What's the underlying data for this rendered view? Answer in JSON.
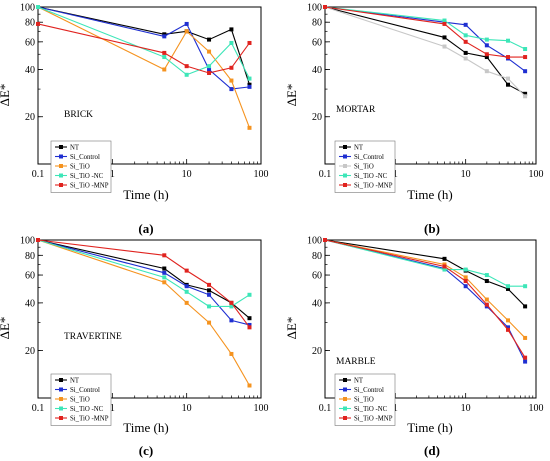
{
  "colors": {
    "NT": "#000000",
    "Si_Control": "#1f2fd1",
    "Si_TiO2": "#f5931f",
    "Si_TiO2_NC": "#3de6b8",
    "Si_TiO2_MNP": "#e0231f",
    "Si_TiO2_light": "#c7c7c7"
  },
  "chart_data": [
    {
      "type": "line",
      "panel_label": "(a)",
      "sample_label": "BRICK",
      "xlabel": "Time (h)",
      "ylabel": "ΔE*",
      "xscale": "log",
      "yscale": "log",
      "xlim": [
        0.1,
        100
      ],
      "ylim": [
        10,
        100
      ],
      "xticks": [
        "0.1",
        "1",
        "10",
        "100"
      ],
      "yticks": [
        "20",
        "40",
        "60",
        "80",
        "100"
      ],
      "legend": [
        "NT",
        "Si_Control",
        "Si_TiO",
        "Si_TiO -NC",
        "Si_TiO -MNP"
      ],
      "series": [
        {
          "name": "NT",
          "color_key": "NT",
          "x": [
            0.1,
            5,
            10,
            20,
            40,
            70
          ],
          "y": [
            100,
            67,
            70,
            62,
            72,
            32
          ]
        },
        {
          "name": "Si_Control",
          "color_key": "Si_Control",
          "x": [
            0.1,
            5,
            10,
            20,
            40,
            70
          ],
          "y": [
            100,
            65,
            78,
            40,
            30,
            31
          ]
        },
        {
          "name": "Si_TiO",
          "color_key": "Si_TiO2",
          "x": [
            0.1,
            5,
            10,
            20,
            40,
            70
          ],
          "y": [
            100,
            40,
            70,
            52,
            34,
            17
          ]
        },
        {
          "name": "Si_TiO -NC",
          "color_key": "Si_TiO2_NC",
          "x": [
            0.1,
            5,
            10,
            20,
            40,
            70
          ],
          "y": [
            100,
            48,
            37,
            42,
            59,
            35
          ]
        },
        {
          "name": "Si_TiO -MNP",
          "color_key": "Si_TiO2_MNP",
          "x": [
            0.1,
            5,
            10,
            20,
            40,
            70
          ],
          "y": [
            78,
            51,
            42,
            38,
            41,
            59
          ]
        }
      ]
    },
    {
      "type": "line",
      "panel_label": "(b)",
      "sample_label": "MORTAR",
      "xlabel": "Time (h)",
      "ylabel": "ΔE*",
      "xscale": "log",
      "yscale": "log",
      "xlim": [
        0.1,
        100
      ],
      "ylim": [
        10,
        100
      ],
      "xticks": [
        "0.1",
        "1",
        "10",
        "100"
      ],
      "yticks": [
        "20",
        "40",
        "60",
        "80",
        "100"
      ],
      "legend": [
        "NT",
        "Si_Control",
        "Si_TiO",
        "Si_TiO -NC",
        "Si_TiO -MNP"
      ],
      "series": [
        {
          "name": "NT",
          "color_key": "NT",
          "x": [
            0.1,
            5,
            10,
            20,
            40,
            70
          ],
          "y": [
            100,
            64,
            51,
            48,
            32,
            28
          ]
        },
        {
          "name": "Si_Control",
          "color_key": "Si_Control",
          "x": [
            0.1,
            5,
            10,
            20,
            40,
            70
          ],
          "y": [
            100,
            80,
            77,
            57,
            47,
            39
          ]
        },
        {
          "name": "Si_TiO",
          "color_key": "Si_TiO2_light",
          "x": [
            0.1,
            5,
            10,
            20,
            40,
            70
          ],
          "y": [
            100,
            56,
            47,
            39,
            35,
            27
          ]
        },
        {
          "name": "Si_TiO -NC",
          "color_key": "Si_TiO2_NC",
          "x": [
            0.1,
            5,
            10,
            20,
            40,
            70
          ],
          "y": [
            100,
            82,
            66,
            62,
            61,
            54
          ]
        },
        {
          "name": "Si_TiO -MNP",
          "color_key": "Si_TiO2_MNP",
          "x": [
            0.1,
            5,
            10,
            20,
            40,
            70
          ],
          "y": [
            100,
            78,
            60,
            50,
            48,
            48
          ]
        }
      ]
    },
    {
      "type": "line",
      "panel_label": "(c)",
      "sample_label": "TRAVERTINE",
      "xlabel": "Time (h)",
      "ylabel": "ΔE*",
      "xscale": "log",
      "yscale": "log",
      "xlim": [
        0.1,
        100
      ],
      "ylim": [
        10,
        100
      ],
      "xticks": [
        "0.1",
        "1",
        "10",
        "100"
      ],
      "yticks": [
        "20",
        "40",
        "60",
        "80",
        "100"
      ],
      "legend": [
        "NT",
        "Si_Control",
        "Si_TiO",
        "Si_TiO -NC",
        "Si_TiO -MNP"
      ],
      "series": [
        {
          "name": "NT",
          "color_key": "NT",
          "x": [
            0.1,
            5,
            10,
            20,
            40,
            70
          ],
          "y": [
            100,
            66,
            52,
            48,
            40,
            32
          ]
        },
        {
          "name": "Si_Control",
          "color_key": "Si_Control",
          "x": [
            0.1,
            5,
            10,
            20,
            40,
            70
          ],
          "y": [
            100,
            62,
            51,
            45,
            31,
            29
          ]
        },
        {
          "name": "Si_TiO",
          "color_key": "Si_TiO2",
          "x": [
            0.1,
            5,
            10,
            20,
            40,
            70
          ],
          "y": [
            100,
            54,
            40,
            30,
            19,
            12
          ]
        },
        {
          "name": "Si_TiO -NC",
          "color_key": "Si_TiO2_NC",
          "x": [
            0.1,
            5,
            10,
            20,
            40,
            70
          ],
          "y": [
            100,
            58,
            47,
            38,
            38,
            45
          ]
        },
        {
          "name": "Si_TiO -MNP",
          "color_key": "Si_TiO2_MNP",
          "x": [
            0.1,
            5,
            10,
            20,
            40,
            70
          ],
          "y": [
            100,
            80,
            64,
            52,
            40,
            28
          ]
        }
      ]
    },
    {
      "type": "line",
      "panel_label": "(d)",
      "sample_label": "MARBLE",
      "xlabel": "Time (h)",
      "ylabel": "ΔE*",
      "xscale": "log",
      "yscale": "log",
      "xlim": [
        0.1,
        100
      ],
      "ylim": [
        10,
        100
      ],
      "xticks": [
        "0.1",
        "1",
        "10",
        "100"
      ],
      "yticks": [
        "20",
        "40",
        "60",
        "80",
        "100"
      ],
      "legend": [
        "NT",
        "Si_Control",
        "Si_TiO",
        "Si_TiO -NC",
        "Si_TiO -MNP"
      ],
      "series": [
        {
          "name": "NT",
          "color_key": "NT",
          "x": [
            0.1,
            5,
            10,
            20,
            40,
            70
          ],
          "y": [
            100,
            76,
            64,
            55,
            49,
            38
          ]
        },
        {
          "name": "Si_Control",
          "color_key": "Si_Control",
          "x": [
            0.1,
            5,
            10,
            20,
            40,
            70
          ],
          "y": [
            100,
            66,
            51,
            38,
            28,
            17
          ]
        },
        {
          "name": "Si_TiO",
          "color_key": "Si_TiO2",
          "x": [
            0.1,
            5,
            10,
            20,
            40,
            70
          ],
          "y": [
            100,
            70,
            58,
            42,
            31,
            24
          ]
        },
        {
          "name": "Si_TiO -NC",
          "color_key": "Si_TiO2_NC",
          "x": [
            0.1,
            5,
            10,
            20,
            40,
            70
          ],
          "y": [
            100,
            65,
            65,
            60,
            51,
            51
          ]
        },
        {
          "name": "Si_TiO -MNP",
          "color_key": "Si_TiO2_MNP",
          "x": [
            0.1,
            5,
            10,
            20,
            40,
            70
          ],
          "y": [
            100,
            68,
            55,
            39,
            27,
            18
          ]
        }
      ]
    }
  ]
}
